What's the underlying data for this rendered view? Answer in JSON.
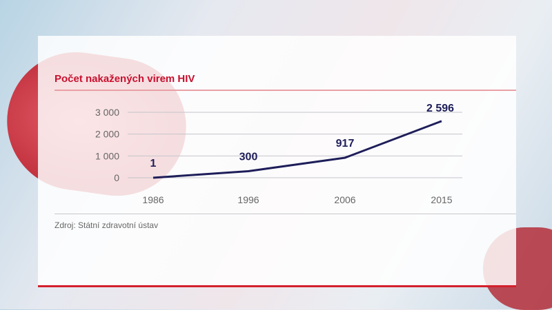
{
  "chart_data": {
    "type": "line",
    "title": "Počet nakažených virem HIV",
    "categories": [
      "1986",
      "1996",
      "2006",
      "2015"
    ],
    "values": [
      1,
      300,
      917,
      2596
    ],
    "data_labels": [
      "1",
      "300",
      "917",
      "2 596"
    ],
    "yticks": [
      0,
      1000,
      2000,
      3000
    ],
    "ytick_labels": [
      "0",
      "1 000",
      "2 000",
      "3 000"
    ],
    "ylim": [
      0,
      3000
    ],
    "grid": true,
    "line_color": "#1e1e5a",
    "source": "Zdroj: Státní zdravotní ústav"
  },
  "colors": {
    "title": "#c8102e",
    "accent": "#d3202d"
  }
}
